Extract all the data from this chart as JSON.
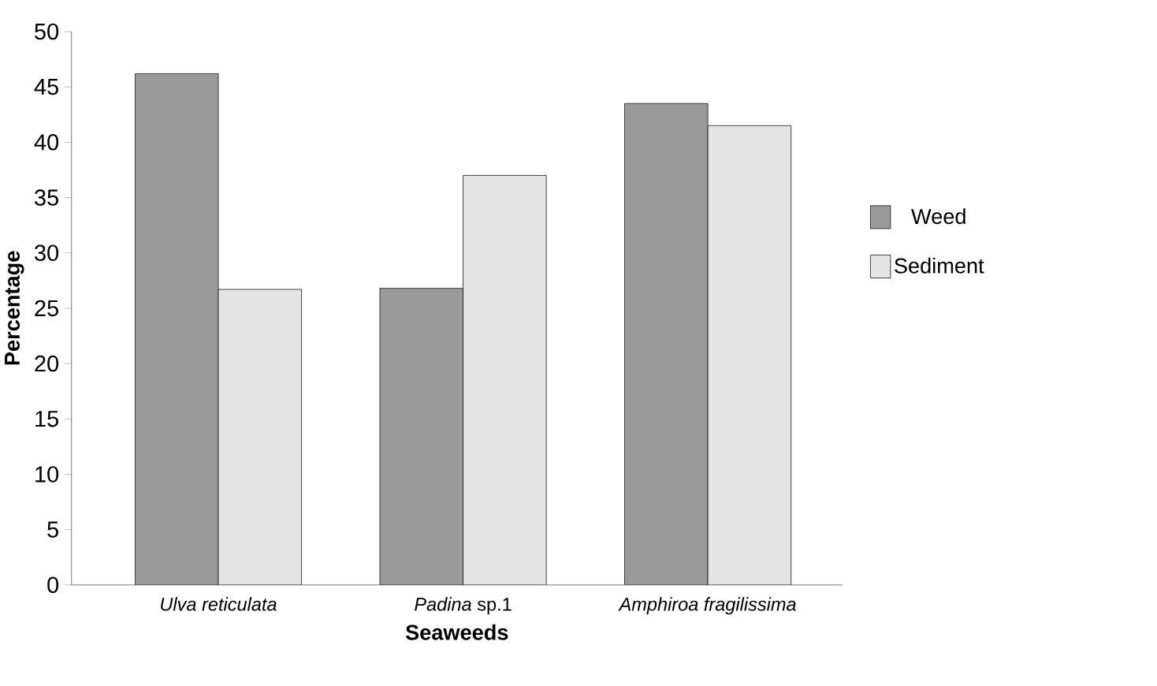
{
  "chart_data": {
    "type": "bar",
    "xlabel": "Seaweeds",
    "ylabel": "Percentage",
    "categories": [
      "*Ulva reticulata*",
      "*Padina* sp.1",
      "*Amphiroa  fragilissima*"
    ],
    "series": [
      {
        "name": "Weed",
        "color": "#9a9a9a",
        "values": [
          46.2,
          26.8,
          43.5
        ]
      },
      {
        "name": "Sediment",
        "color": "#e4e4e4",
        "values": [
          26.7,
          37.0,
          41.5
        ]
      }
    ],
    "ylim": [
      0,
      50
    ],
    "yticks": [
      0,
      5,
      10,
      15,
      20,
      25,
      30,
      35,
      40,
      45,
      50
    ],
    "grid": false,
    "legend": "right"
  }
}
